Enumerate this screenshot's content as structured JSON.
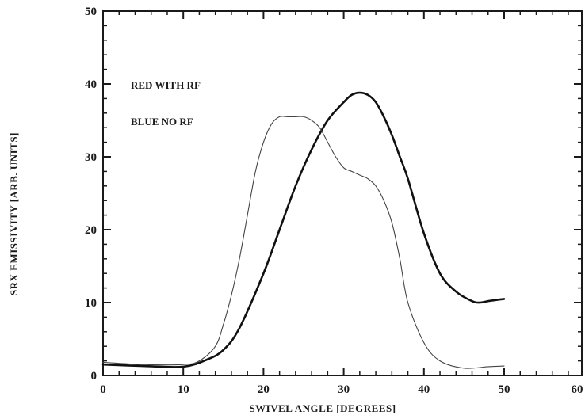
{
  "chart_data": {
    "type": "line",
    "title": "",
    "xlabel": "SWIVEL ANGLE [DEGREES]",
    "ylabel": "SRX EMISSIVITY [ARB. UNITS]",
    "xlim": [
      0,
      60
    ],
    "ylim": [
      0,
      50
    ],
    "x_ticks": [
      "0",
      "10",
      "20",
      "30",
      "40",
      "50",
      "60"
    ],
    "y_ticks": [
      "0",
      "10",
      "20",
      "30",
      "40",
      "50"
    ],
    "series": [
      {
        "name": "RED WITH RF",
        "color": "#111111",
        "style": "solid-thick",
        "x": [
          0,
          5,
          10,
          13,
          15,
          17,
          20,
          22,
          24,
          26,
          28,
          30,
          31,
          32,
          33,
          34,
          35,
          36,
          37,
          38,
          40,
          42,
          44,
          46,
          47,
          48,
          50
        ],
        "y": [
          1.5,
          1.3,
          1.2,
          2.2,
          3.5,
          6.5,
          14,
          20,
          26,
          31,
          35,
          37.5,
          38.5,
          38.8,
          38.5,
          37.5,
          35.5,
          33,
          30,
          27,
          19.5,
          14,
          11.5,
          10.2,
          10,
          10.2,
          10.5
        ]
      },
      {
        "name": "BLUE NO RF",
        "color": "#444444",
        "style": "solid-thin",
        "x": [
          0,
          5,
          10,
          12,
          14,
          15,
          16,
          17,
          18,
          19,
          20,
          21,
          22,
          23,
          24,
          25,
          26,
          27,
          28,
          29,
          30,
          31,
          32,
          33,
          34,
          35,
          36,
          37,
          38,
          40,
          42,
          45,
          48,
          50
        ],
        "y": [
          1.8,
          1.5,
          1.5,
          2.0,
          4,
          7,
          11,
          16,
          22,
          28,
          32,
          34.5,
          35.5,
          35.5,
          35.5,
          35.5,
          35,
          34,
          32,
          30,
          28.5,
          28,
          27.5,
          27,
          26,
          24,
          21,
          16,
          10,
          4.5,
          2,
          1,
          1.2,
          1.3
        ]
      }
    ],
    "legend": {
      "placement": "top-left",
      "entries": [
        "RED WITH RF",
        "BLUE NO RF"
      ]
    },
    "grid": false
  }
}
